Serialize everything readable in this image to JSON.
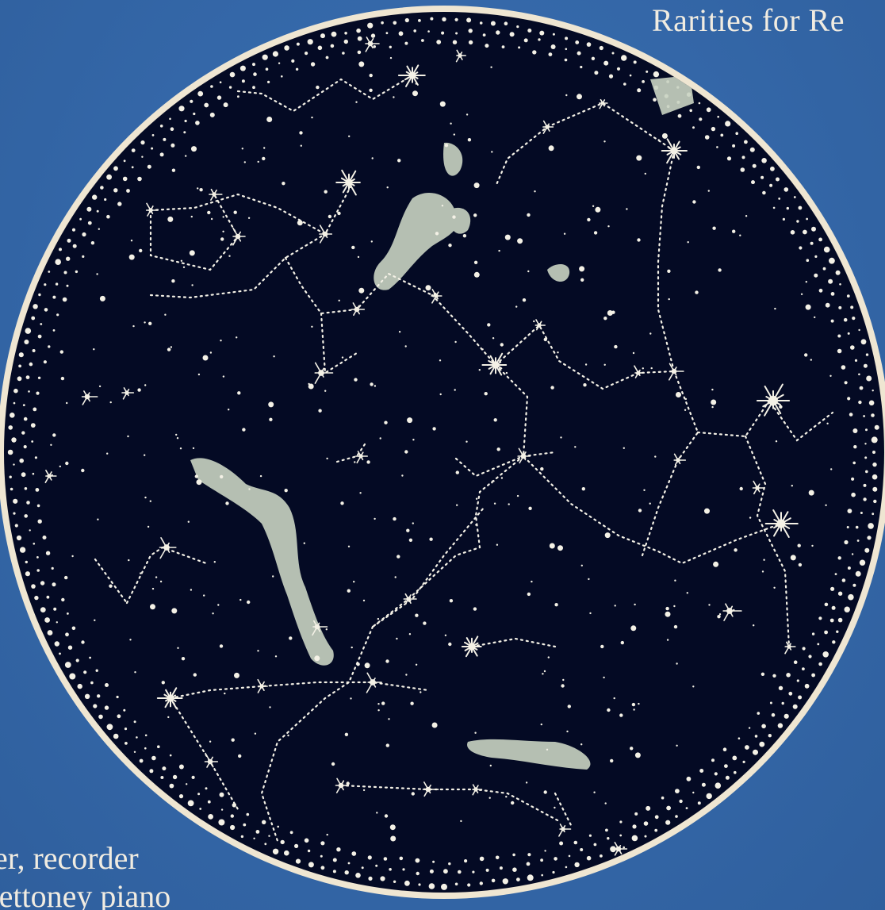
{
  "cover": {
    "title": "Rarities for Re",
    "credits": [
      "ner, recorder",
      "Bettoney piano"
    ]
  },
  "colors": {
    "background": "#3467a8",
    "sky": "#040a24",
    "rim": "#efe6d2",
    "star": "#f4f1e6",
    "cluster": "#c9d3c2",
    "text": "#f1ece1"
  }
}
